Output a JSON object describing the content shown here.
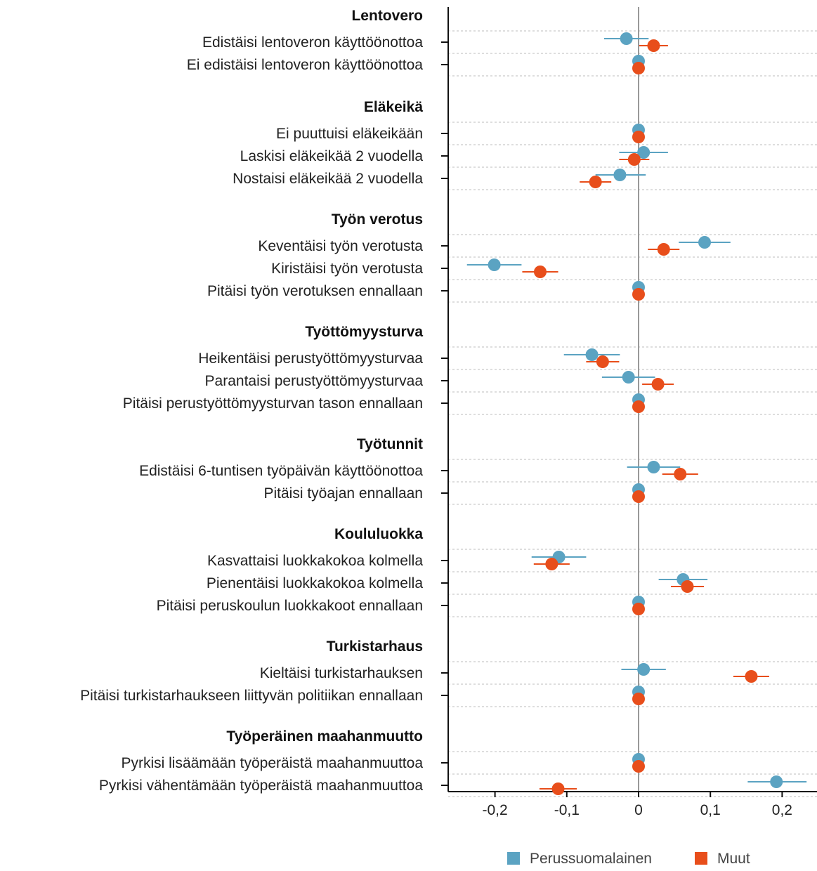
{
  "chart_data": {
    "type": "scatter",
    "orientation": "horizontal",
    "x_ticks": [
      -0.2,
      -0.1,
      0,
      0.1,
      0.2
    ],
    "x_tick_labels": [
      "-0,2",
      "-0,1",
      "0",
      "0,1",
      "0,2"
    ],
    "xlim": [
      -0.26,
      0.25
    ],
    "grid": "dotted horizontal separators",
    "legend_position": "bottom",
    "series": [
      {
        "name": "Perussuomalainen",
        "color": "#5ba3c2"
      },
      {
        "name": "Muut",
        "color": "#e84e1b"
      }
    ],
    "groups": [
      {
        "title": "Lentovero",
        "items": [
          {
            "label": "Edistäisi lentoveron käyttöönottoa",
            "values": [
              -0.017,
              0.021
            ],
            "ci": [
              [
                -0.048,
                0.014
              ],
              [
                0.001,
                0.041
              ]
            ]
          },
          {
            "label": "Ei edistäisi lentoveron käyttöönottoa",
            "values": [
              0,
              0
            ],
            "ci": [
              [
                0,
                0
              ],
              [
                0,
                0
              ]
            ]
          }
        ]
      },
      {
        "title": "Eläkeikä",
        "items": [
          {
            "label": "Ei puuttuisi eläkeikään",
            "values": [
              0,
              0
            ],
            "ci": [
              [
                0,
                0
              ],
              [
                0,
                0
              ]
            ]
          },
          {
            "label": "Laskisi eläkeikää 2 vuodella",
            "values": [
              0.007,
              -0.006
            ],
            "ci": [
              [
                -0.027,
                0.041
              ],
              [
                -0.027,
                0.015
              ]
            ]
          },
          {
            "label": "Nostaisi eläkeikää 2 vuodella",
            "values": [
              -0.026,
              -0.06
            ],
            "ci": [
              [
                -0.06,
                0.01
              ],
              [
                -0.082,
                -0.038
              ]
            ]
          }
        ]
      },
      {
        "title": "Työn verotus",
        "items": [
          {
            "label": "Keventäisi työn verotusta",
            "values": [
              0.092,
              0.035
            ],
            "ci": [
              [
                0.056,
                0.128
              ],
              [
                0.013,
                0.057
              ]
            ]
          },
          {
            "label": "Kiristäisi työn verotusta",
            "values": [
              -0.201,
              -0.137
            ],
            "ci": [
              [
                -0.239,
                -0.163
              ],
              [
                -0.162,
                -0.112
              ]
            ]
          },
          {
            "label": "Pitäisi työn verotuksen ennallaan",
            "values": [
              0,
              0
            ],
            "ci": [
              [
                0,
                0
              ],
              [
                0,
                0
              ]
            ]
          }
        ]
      },
      {
        "title": "Työttömyysturva",
        "items": [
          {
            "label": "Heikentäisi perustyöttömyysturvaa",
            "values": [
              -0.065,
              -0.05
            ],
            "ci": [
              [
                -0.104,
                -0.026
              ],
              [
                -0.073,
                -0.027
              ]
            ]
          },
          {
            "label": "Parantaisi perustyöttömyysturvaa",
            "values": [
              -0.014,
              0.027
            ],
            "ci": [
              [
                -0.051,
                0.023
              ],
              [
                0.005,
                0.049
              ]
            ]
          },
          {
            "label": "Pitäisi perustyöttömyysturvan tason ennallaan",
            "values": [
              0,
              0
            ],
            "ci": [
              [
                0,
                0
              ],
              [
                0,
                0
              ]
            ]
          }
        ]
      },
      {
        "title": "Työtunnit",
        "items": [
          {
            "label": "Edistäisi 6-tuntisen työpäivän käyttöönottoa",
            "values": [
              0.021,
              0.058
            ],
            "ci": [
              [
                -0.016,
                0.058
              ],
              [
                0.033,
                0.083
              ]
            ]
          },
          {
            "label": "Pitäisi työajan ennallaan",
            "values": [
              0,
              0
            ],
            "ci": [
              [
                0,
                0
              ],
              [
                0,
                0
              ]
            ]
          }
        ]
      },
      {
        "title": "Koululuokka",
        "items": [
          {
            "label": "Kasvattaisi luokkakokoa kolmella",
            "values": [
              -0.111,
              -0.121
            ],
            "ci": [
              [
                -0.149,
                -0.073
              ],
              [
                -0.146,
                -0.096
              ]
            ]
          },
          {
            "label": "Pienentäisi luokkakokoa kolmella",
            "values": [
              0.062,
              0.068
            ],
            "ci": [
              [
                0.028,
                0.096
              ],
              [
                0.045,
                0.091
              ]
            ]
          },
          {
            "label": "Pitäisi peruskoulun luokkakoot ennallaan",
            "values": [
              0,
              0
            ],
            "ci": [
              [
                0,
                0
              ],
              [
                0,
                0
              ]
            ]
          }
        ]
      },
      {
        "title": "Turkistarhaus",
        "items": [
          {
            "label": "Kieltäisi turkistarhauksen",
            "values": [
              0.007,
              0.157
            ],
            "ci": [
              [
                -0.024,
                0.038
              ],
              [
                0.132,
                0.182
              ]
            ]
          },
          {
            "label": "Pitäisi turkistarhaukseen liittyvän politiikan ennallaan",
            "values": [
              0,
              0
            ],
            "ci": [
              [
                0,
                0
              ],
              [
                0,
                0
              ]
            ]
          }
        ]
      },
      {
        "title": "Työperäinen maahanmuutto",
        "items": [
          {
            "label": "Pyrkisi lisäämään työperäistä maahanmuuttoa",
            "values": [
              0,
              0
            ],
            "ci": [
              [
                0,
                0
              ],
              [
                0,
                0
              ]
            ]
          },
          {
            "label": "Pyrkisi vähentämään työperäistä maahanmuuttoa",
            "values": [
              0.192,
              -0.112
            ],
            "ci": [
              [
                0.152,
                0.234
              ],
              [
                -0.138,
                -0.086
              ]
            ]
          }
        ]
      }
    ]
  }
}
